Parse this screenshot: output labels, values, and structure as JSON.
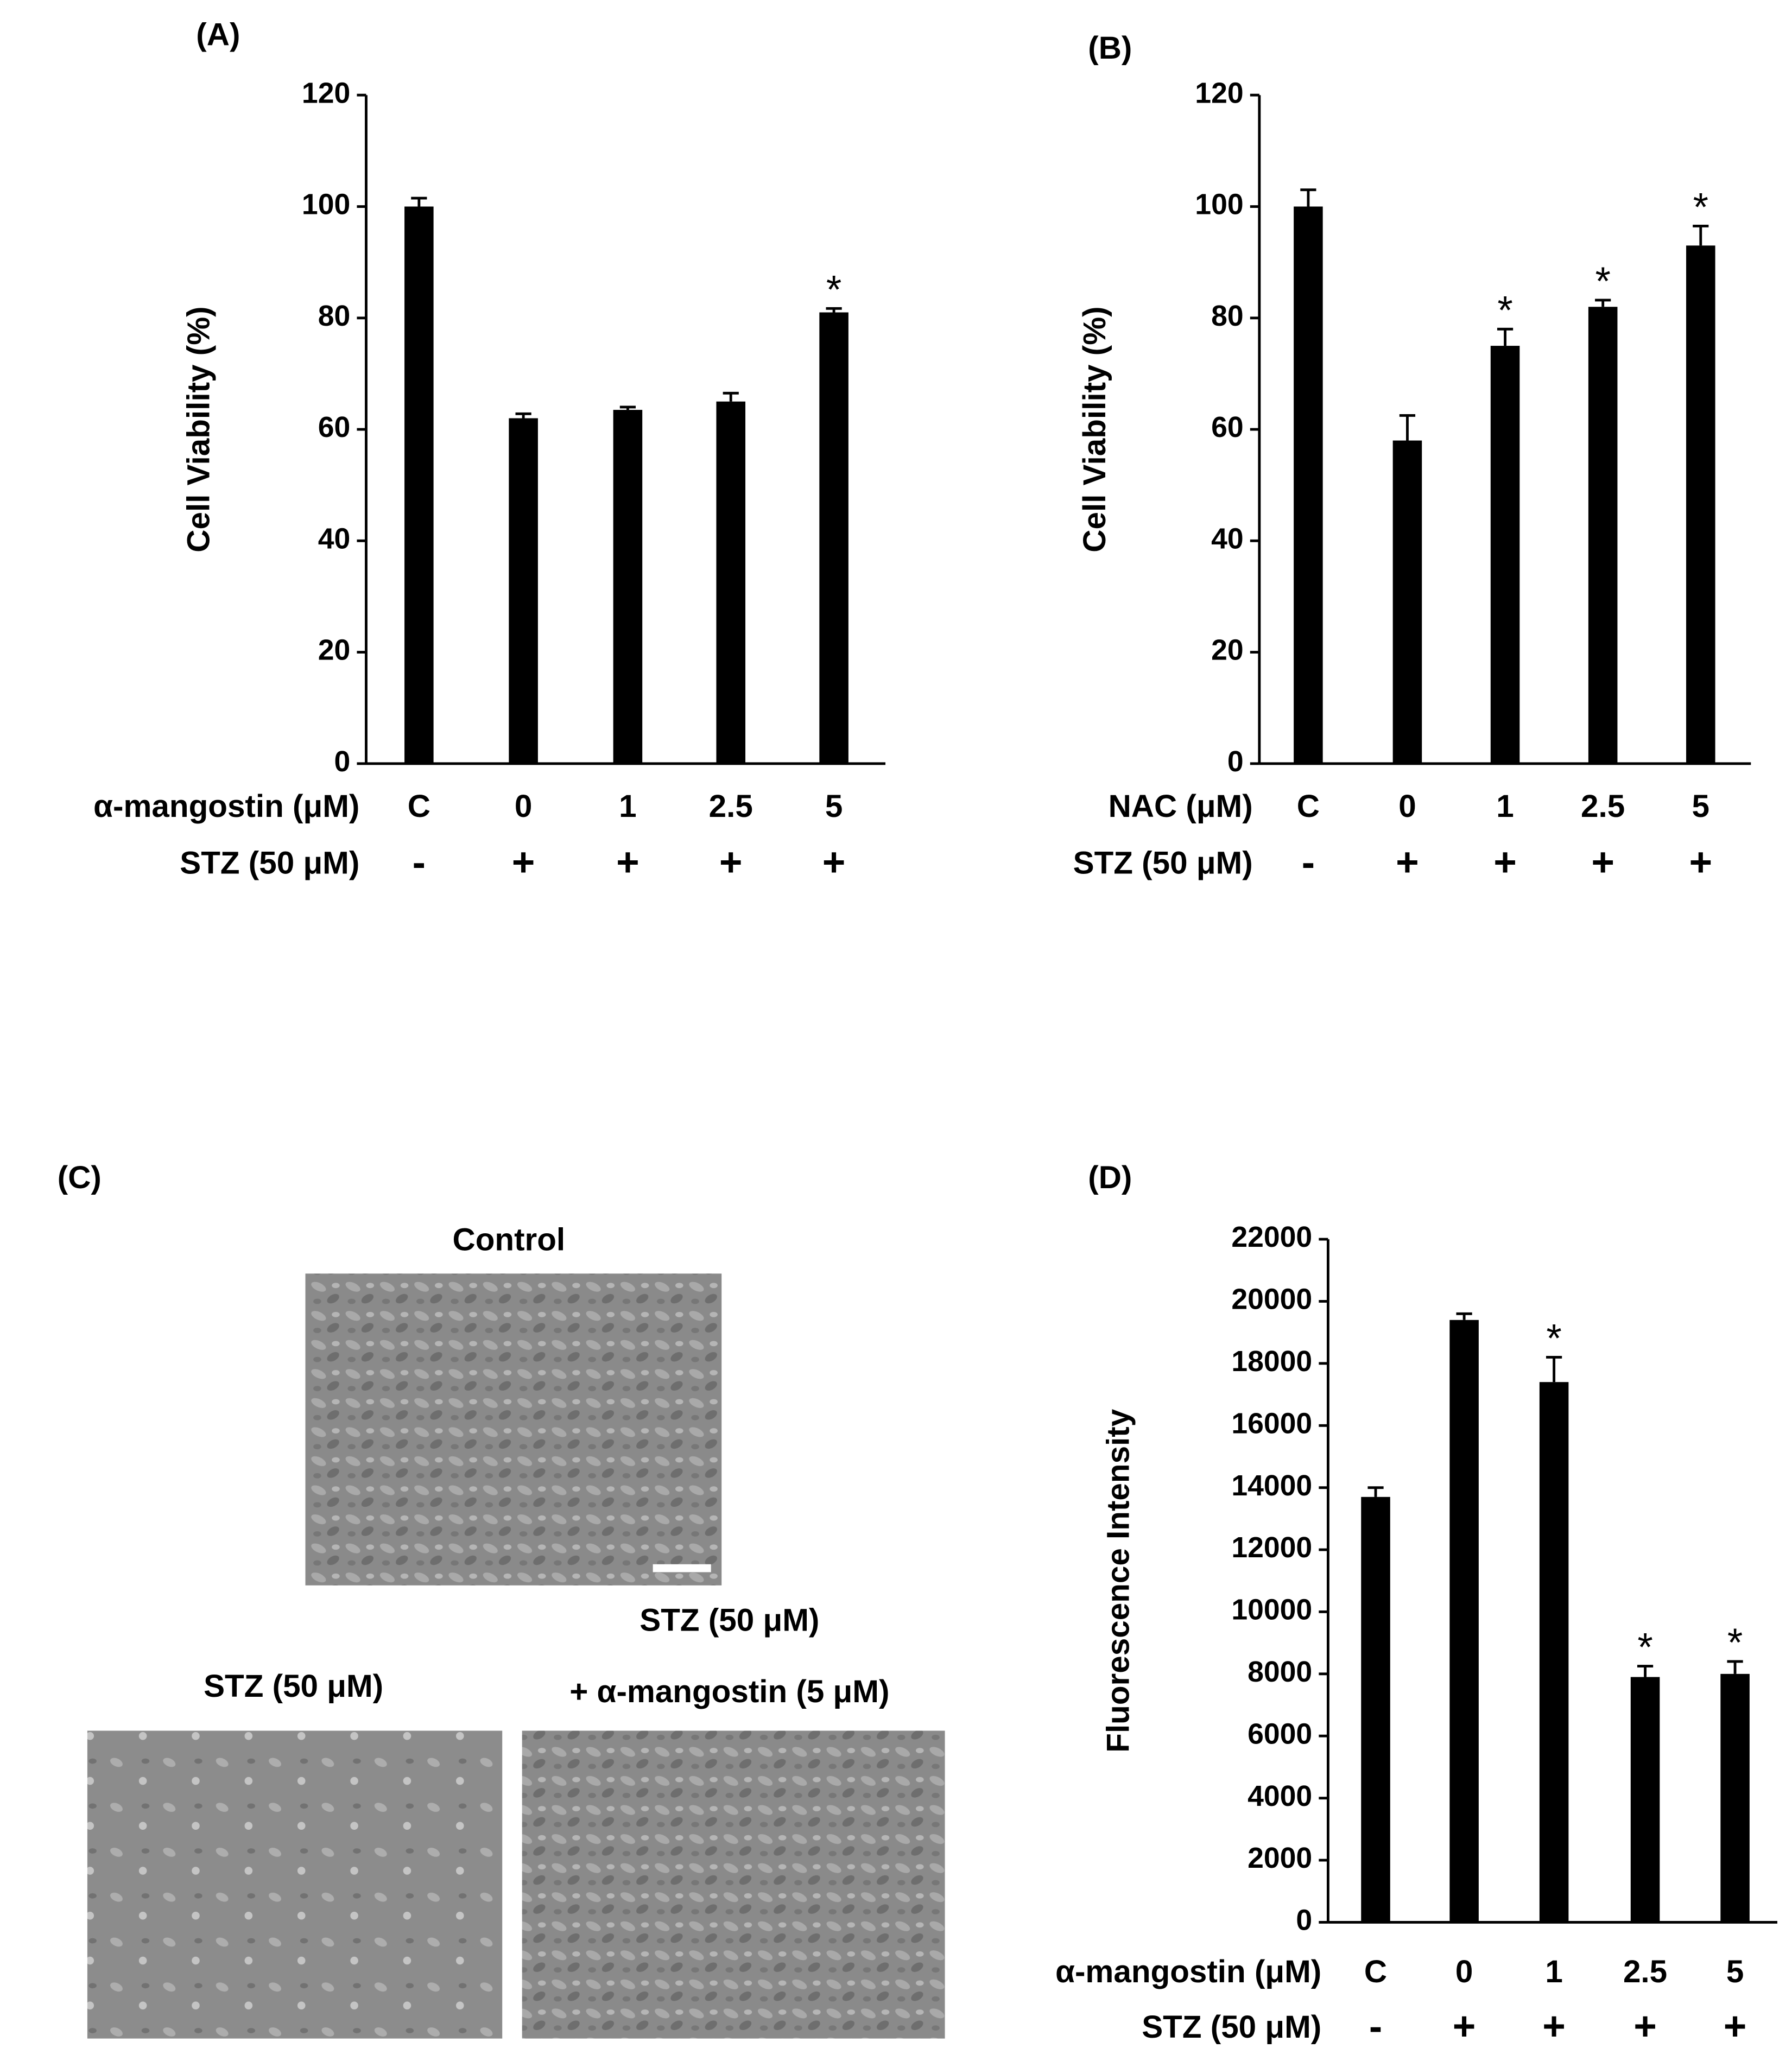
{
  "chart_data": [
    {
      "type": "bar",
      "panel": "(A)",
      "ylabel": "Cell Viability (%)",
      "x_label": "α-mangostin  (μM)",
      "treatment_label": "STZ (50 μM)",
      "categories": [
        "C",
        "0",
        "1",
        "2.5",
        "5"
      ],
      "treatment": [
        "-",
        "+",
        "+",
        "+",
        "+"
      ],
      "values": [
        100,
        62,
        63.5,
        65,
        81
      ],
      "errors": [
        1.5,
        0.8,
        0.5,
        1.5,
        0.7
      ],
      "significance": [
        null,
        null,
        null,
        null,
        "*"
      ],
      "color": "#000000",
      "ylim": [
        0,
        120
      ],
      "yticks": [
        0,
        20,
        40,
        60,
        80,
        100,
        120
      ]
    },
    {
      "type": "bar",
      "panel": "(B)",
      "ylabel": "Cell Viability (%)",
      "x_label": "NAC (μM)",
      "treatment_label": "STZ (50 μM)",
      "categories": [
        "C",
        "0",
        "1",
        "2.5",
        "5"
      ],
      "treatment": [
        "-",
        "+",
        "+",
        "+",
        "+"
      ],
      "values": [
        100,
        58,
        75,
        82,
        93
      ],
      "errors": [
        3,
        4.5,
        3,
        1.2,
        3.5
      ],
      "significance": [
        null,
        null,
        "*",
        "*",
        "*"
      ],
      "color": "#000000",
      "ylim": [
        0,
        120
      ],
      "yticks": [
        0,
        20,
        40,
        60,
        80,
        100,
        120
      ]
    },
    {
      "type": "bar",
      "panel": "(D)",
      "ylabel": "Fluorescence Intensity",
      "x_label": "α-mangostin  (μM)",
      "treatment_label": "STZ (50 μM)",
      "categories": [
        "C",
        "0",
        "1",
        "2.5",
        "5"
      ],
      "treatment": [
        "-",
        "+",
        "+",
        "+",
        "+"
      ],
      "values": [
        13700,
        19400,
        17400,
        7900,
        8000
      ],
      "errors": [
        300,
        200,
        800,
        350,
        400
      ],
      "significance": [
        null,
        null,
        "*",
        "*",
        "*"
      ],
      "color": "#000000",
      "ylim": [
        0,
        22000
      ],
      "yticks": [
        0,
        2000,
        4000,
        6000,
        8000,
        10000,
        12000,
        14000,
        16000,
        18000,
        20000,
        22000
      ]
    }
  ],
  "panel_c": {
    "panel": "(C)",
    "control": "Control",
    "stz": "STZ (50 μM)",
    "combo_line1": "STZ (50 μM)",
    "combo_line2": "+ α-mangostin (5 μM)"
  }
}
